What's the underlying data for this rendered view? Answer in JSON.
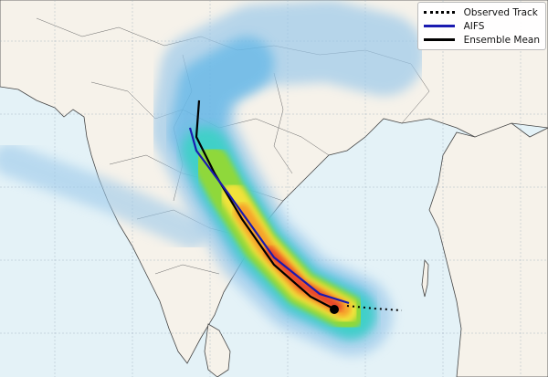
{
  "legend": {
    "items": [
      {
        "label": "Observed Track",
        "style": "dotted",
        "color": "#000000"
      },
      {
        "label": "AIFS",
        "style": "solid",
        "color": "#1a1ab0"
      },
      {
        "label": "Ensemble Mean",
        "style": "solid",
        "color": "#000000"
      }
    ]
  },
  "colors": {
    "ocean": "#e4f2f7",
    "land": "#f6f2ea",
    "swath": [
      "#9cc9ea",
      "#4fb0e6",
      "#3fd0c8",
      "#8fd83a",
      "#f2e23a",
      "#f6a02a",
      "#e8432a"
    ]
  }
}
